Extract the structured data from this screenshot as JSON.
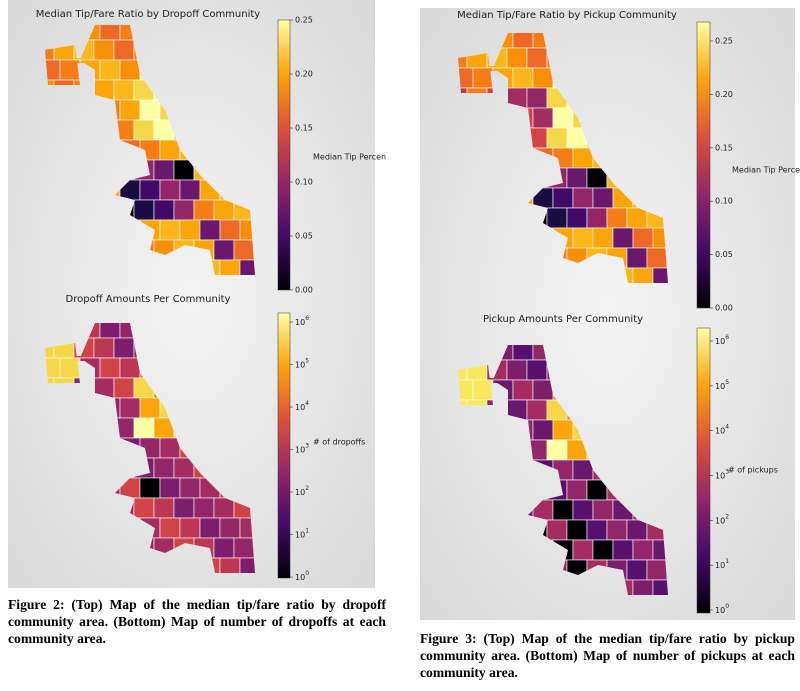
{
  "figures": [
    {
      "panels": [
        {
          "title": "Median Tip/Fare Ratio by Dropoff Community",
          "colorbar": {
            "label": "Median Tip Percen",
            "ticks": [
              "0.00",
              "0.05",
              "0.10",
              "0.15",
              "0.20",
              "0.25"
            ]
          }
        },
        {
          "title": "Dropoff Amounts Per Community",
          "colorbar": {
            "label": "# of dropoffs",
            "ticks": [
              {
                "base": "10",
                "exp": "0"
              },
              {
                "base": "10",
                "exp": "1"
              },
              {
                "base": "10",
                "exp": "2"
              },
              {
                "base": "10",
                "exp": "3"
              },
              {
                "base": "10",
                "exp": "4"
              },
              {
                "base": "10",
                "exp": "5"
              },
              {
                "base": "10",
                "exp": "6"
              }
            ]
          }
        }
      ],
      "caption": "Figure 2: (Top) Map of the median tip/fare ratio by dropoff community area. (Bottom) Map of number of dropoffs at each community area."
    },
    {
      "panels": [
        {
          "title": "Median Tip/Fare Ratio by Pickup Community",
          "colorbar": {
            "label": "Median Tip Percen",
            "ticks": [
              "0.00",
              "0.05",
              "0.10",
              "0.15",
              "0.20",
              "0.25"
            ]
          }
        },
        {
          "title": "Pickup Amounts Per Community",
          "colorbar": {
            "label": "# of pickups",
            "ticks": [
              {
                "base": "10",
                "exp": "0"
              },
              {
                "base": "10",
                "exp": "1"
              },
              {
                "base": "10",
                "exp": "2"
              },
              {
                "base": "10",
                "exp": "3"
              },
              {
                "base": "10",
                "exp": "4"
              },
              {
                "base": "10",
                "exp": "5"
              },
              {
                "base": "10",
                "exp": "6"
              }
            ]
          }
        }
      ],
      "caption": "Figure 3: (Top) Map of the median tip/fare ratio by pickup community area. (Bottom) Map of number of pickups at each community area."
    }
  ]
}
